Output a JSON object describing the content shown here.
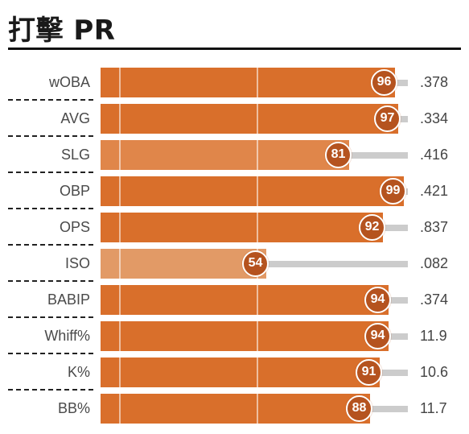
{
  "title": "打擊 PR",
  "colors": {
    "bar_dark": "#d96f2b",
    "bar_mid": "#e0864a",
    "bar_light": "#e29a66",
    "badge": "#b5531f",
    "track": "#cccccc"
  },
  "rows": [
    {
      "label": "wOBA",
      "pr": "96",
      "value": ".378"
    },
    {
      "label": "AVG",
      "pr": "97",
      "value": ".334"
    },
    {
      "label": "SLG",
      "pr": "81",
      "value": ".416"
    },
    {
      "label": "OBP",
      "pr": "99",
      "value": ".421"
    },
    {
      "label": "OPS",
      "pr": "92",
      "value": ".837"
    },
    {
      "label": "ISO",
      "pr": "54",
      "value": ".082"
    },
    {
      "label": "BABIP",
      "pr": "94",
      "value": ".374"
    },
    {
      "label": "Whiff%",
      "pr": "94",
      "value": "11.9"
    },
    {
      "label": "K%",
      "pr": "91",
      "value": "10.6"
    },
    {
      "label": "BB%",
      "pr": "88",
      "value": "11.7"
    }
  ]
}
